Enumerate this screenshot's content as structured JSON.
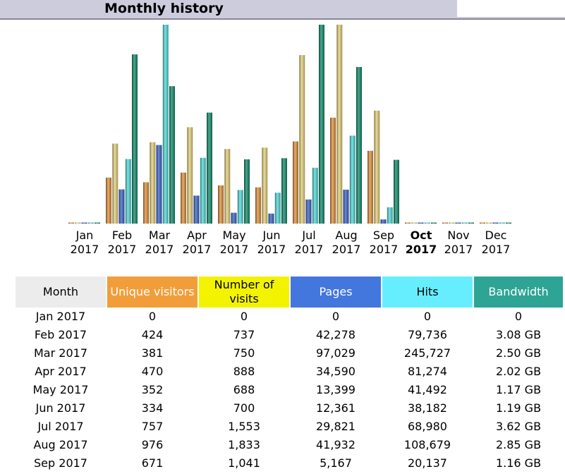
{
  "header": {
    "title": "Monthly history"
  },
  "colors": {
    "visitors": "#f19e3a",
    "visits": "#f3f300",
    "pages": "#4477dd",
    "hits": "#66eeff",
    "bandwidth": "#2ea495",
    "month_header_bg": "#ececec",
    "visitors_bar": "#e0903c",
    "visits_bar": "#e6d27a",
    "pages_bar": "#3a62c8",
    "hits_bar": "#52dada",
    "bandwidth_bar": "#108a6a"
  },
  "table": {
    "headers": {
      "month": "Month",
      "visitors": "Unique visitors",
      "visits": "Number of visits",
      "pages": "Pages",
      "hits": "Hits",
      "bandwidth": "Bandwidth"
    },
    "rows": [
      {
        "month": "Jan 2017",
        "visitors": "0",
        "visits": "0",
        "pages": "0",
        "hits": "0",
        "bandwidth": "0"
      },
      {
        "month": "Feb 2017",
        "visitors": "424",
        "visits": "737",
        "pages": "42,278",
        "hits": "79,736",
        "bandwidth": "3.08 GB"
      },
      {
        "month": "Mar 2017",
        "visitors": "381",
        "visits": "750",
        "pages": "97,029",
        "hits": "245,727",
        "bandwidth": "2.50 GB"
      },
      {
        "month": "Apr 2017",
        "visitors": "470",
        "visits": "888",
        "pages": "34,590",
        "hits": "81,274",
        "bandwidth": "2.02 GB"
      },
      {
        "month": "May 2017",
        "visitors": "352",
        "visits": "688",
        "pages": "13,399",
        "hits": "41,492",
        "bandwidth": "1.17 GB"
      },
      {
        "month": "Jun 2017",
        "visitors": "334",
        "visits": "700",
        "pages": "12,361",
        "hits": "38,182",
        "bandwidth": "1.19 GB"
      },
      {
        "month": "Jul 2017",
        "visitors": "757",
        "visits": "1,553",
        "pages": "29,821",
        "hits": "68,980",
        "bandwidth": "3.62 GB"
      },
      {
        "month": "Aug 2017",
        "visitors": "976",
        "visits": "1,833",
        "pages": "41,932",
        "hits": "108,679",
        "bandwidth": "2.85 GB"
      },
      {
        "month": "Sep 2017",
        "visitors": "671",
        "visits": "1,041",
        "pages": "5,167",
        "hits": "20,137",
        "bandwidth": "1.16 GB"
      }
    ]
  },
  "chart_data": {
    "type": "bar",
    "title": "",
    "categories": [
      "Jan",
      "Feb",
      "Mar",
      "Apr",
      "May",
      "Jun",
      "Jul",
      "Aug",
      "Sep",
      "Oct",
      "Nov",
      "Dec"
    ],
    "category_years": [
      "2017",
      "2017",
      "2017",
      "2017",
      "2017",
      "2017",
      "2017",
      "2017",
      "2017",
      "2017",
      "2017",
      "2017"
    ],
    "current_month_index": 9,
    "series": [
      {
        "key": "visitors",
        "values": [
          0,
          424,
          381,
          470,
          352,
          334,
          757,
          976,
          671,
          0,
          0,
          0
        ]
      },
      {
        "key": "visits",
        "values": [
          0,
          737,
          750,
          888,
          688,
          700,
          1553,
          1833,
          1041,
          0,
          0,
          0
        ]
      },
      {
        "key": "pages",
        "values": [
          0,
          42278,
          97029,
          34590,
          13399,
          12361,
          29821,
          41932,
          5167,
          0,
          0,
          0
        ]
      },
      {
        "key": "hits",
        "values": [
          0,
          79736,
          245727,
          81274,
          41492,
          38182,
          68980,
          108679,
          20137,
          0,
          0,
          0
        ]
      },
      {
        "key": "bandwidth_gb",
        "values": [
          0,
          3.08,
          2.5,
          2.02,
          1.17,
          1.19,
          3.62,
          2.85,
          1.16,
          0,
          0,
          0
        ]
      }
    ],
    "scale_groups": {
      "visitors": "visits",
      "visits": "visits",
      "pages": "hits",
      "hits": "hits",
      "bandwidth_gb": "bandwidth_gb"
    },
    "grid": false
  }
}
